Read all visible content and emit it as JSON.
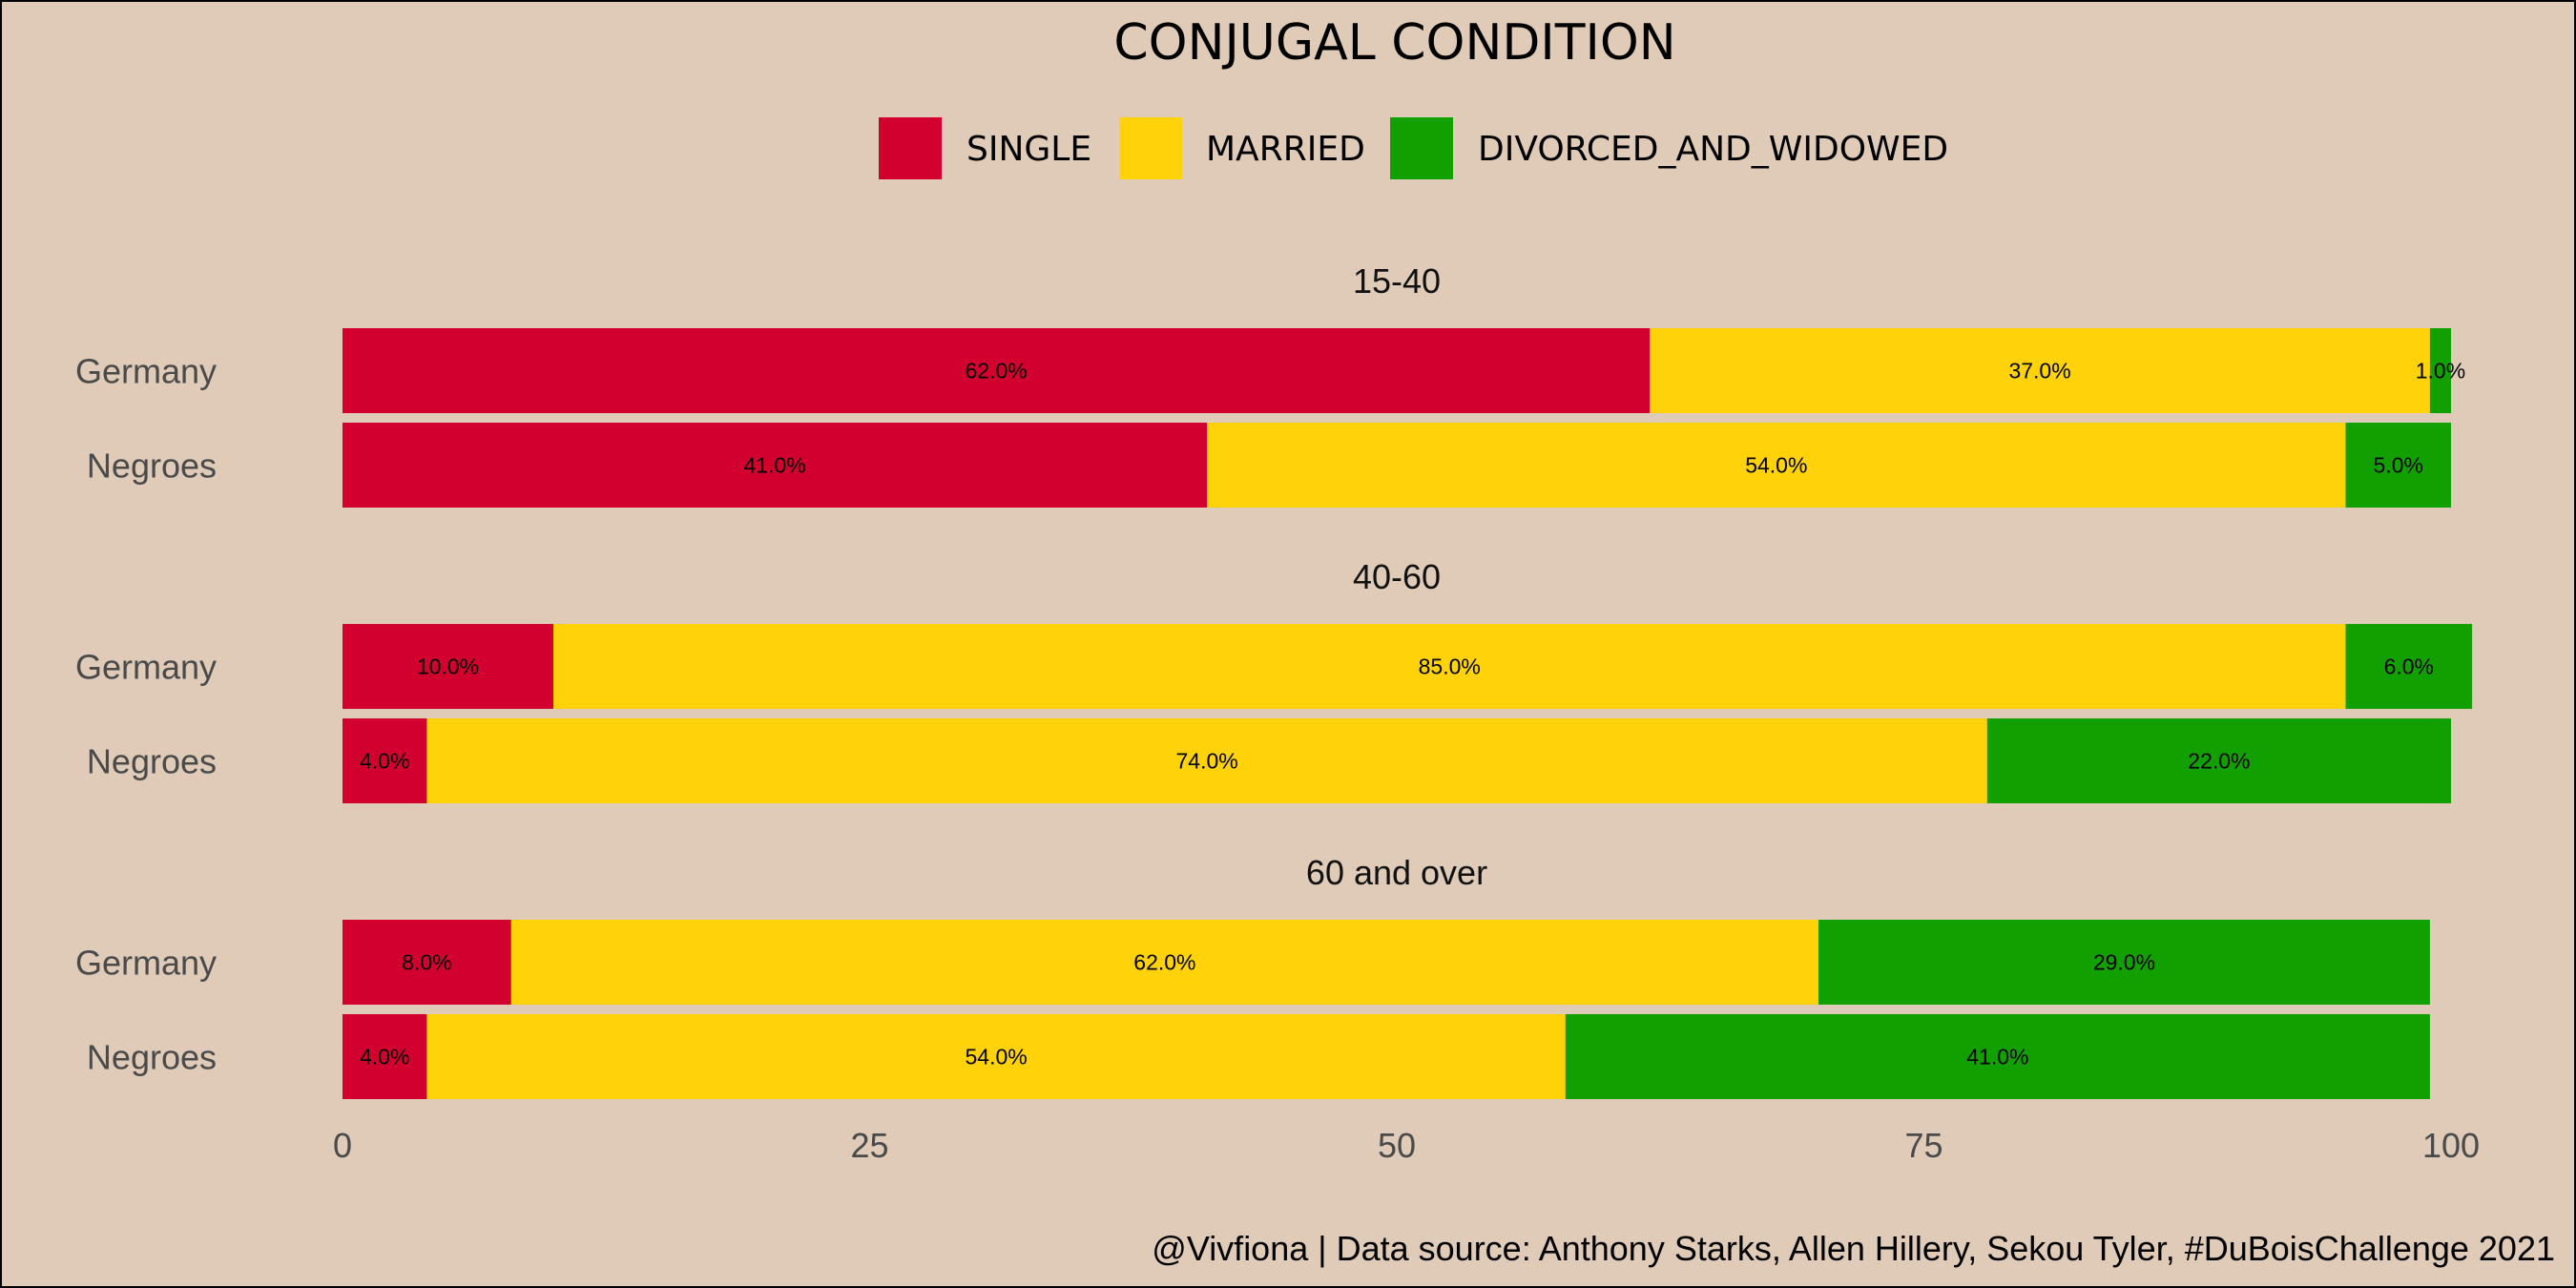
{
  "chart_data": {
    "type": "bar",
    "orientation": "horizontal",
    "stacked": true,
    "title": "CONJUGAL CONDITION",
    "legend_placement": "top",
    "series_names": [
      "SINGLE",
      "MARRIED",
      "DIVORCED_AND_WIDOWED"
    ],
    "colors": {
      "SINGLE": "#d2002e",
      "MARRIED": "#ffd20a",
      "DIVORCED_AND_WIDOWED": "#12a000"
    },
    "xlim": [
      0,
      100
    ],
    "x_ticks": [
      "0",
      "25",
      "50",
      "75",
      "100"
    ],
    "grid": false,
    "facets": [
      {
        "label": "15-40",
        "rows": [
          {
            "category": "Germany",
            "values": [
              62,
              37,
              1
            ],
            "labels": [
              "62.0%",
              "37.0%",
              "1.0%"
            ]
          },
          {
            "category": "Negroes",
            "values": [
              41,
              54,
              5
            ],
            "labels": [
              "41.0%",
              "54.0%",
              "5.0%"
            ]
          }
        ]
      },
      {
        "label": "40-60",
        "rows": [
          {
            "category": "Germany",
            "values": [
              10,
              85,
              6
            ],
            "labels": [
              "10.0%",
              "85.0%",
              "6.0%"
            ]
          },
          {
            "category": "Negroes",
            "values": [
              4,
              74,
              22
            ],
            "labels": [
              "4.0%",
              "74.0%",
              "22.0%"
            ]
          }
        ]
      },
      {
        "label": "60 and over",
        "rows": [
          {
            "category": "Germany",
            "values": [
              8,
              62,
              29
            ],
            "labels": [
              "8.0%",
              "62.0%",
              "29.0%"
            ]
          },
          {
            "category": "Negroes",
            "values": [
              4,
              54,
              41
            ],
            "labels": [
              "4.0%",
              "54.0%",
              "41.0%"
            ]
          }
        ]
      }
    ],
    "caption": "@Vivfiona | Data source: Anthony Starks, Allen Hillery, Sekou Tyler, #DuBoisChallenge 2021"
  }
}
